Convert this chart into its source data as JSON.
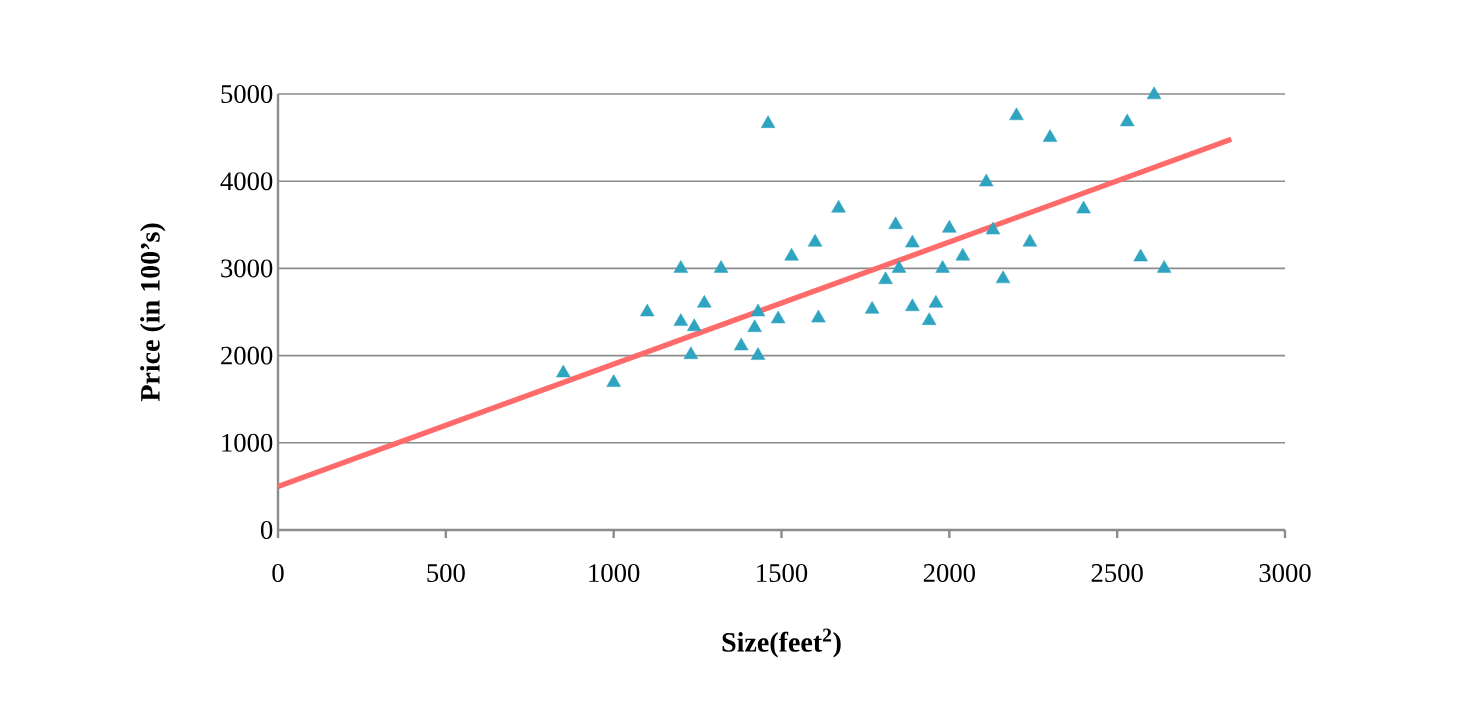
{
  "chart_data": {
    "type": "scatter",
    "xlabel": "Size(feet$^{2}$)",
    "ylabel": "Price (in 100’s)",
    "xlim": [
      0,
      3000
    ],
    "xticks": [
      0,
      500,
      1000,
      1500,
      2000,
      2500,
      3000
    ],
    "ylim": [
      0,
      5000
    ],
    "yticks": [
      0,
      1000,
      2000,
      3000,
      4000,
      5000
    ],
    "grid": "y",
    "series": [
      {
        "color": "#2fa4c0",
        "marker": "triangle",
        "x": [
          850,
          1000,
          1100,
          1200,
          1200,
          1240,
          1230,
          1270,
          1320,
          1380,
          1420,
          1430,
          1430,
          1460,
          1490,
          1530,
          1600,
          1610,
          1670,
          1770,
          1810,
          1840,
          1850,
          1890,
          1890,
          1940,
          1960,
          1980,
          2000,
          2040,
          2110,
          2130,
          2160,
          2200,
          2240,
          2300,
          2400,
          2530,
          2610,
          2570,
          2640
        ],
        "values": [
          1800,
          1690,
          2500,
          3000,
          2390,
          2330,
          2010,
          2600,
          3000,
          2110,
          2320,
          2000,
          2500,
          4660,
          2420,
          3140,
          3300,
          2430,
          3690,
          2530,
          2870,
          3500,
          3000,
          3290,
          2560,
          2400,
          2600,
          3000,
          3460,
          3140,
          3990,
          3440,
          2880,
          4750,
          3300,
          4500,
          3680,
          4680,
          4990,
          3130,
          3000
        ]
      },
      {
        "type": "line",
        "color": "#ff6b6b",
        "marker": "none",
        "x": [
          0,
          2840
        ],
        "values": [
          500,
          4480
        ]
      }
    ]
  }
}
